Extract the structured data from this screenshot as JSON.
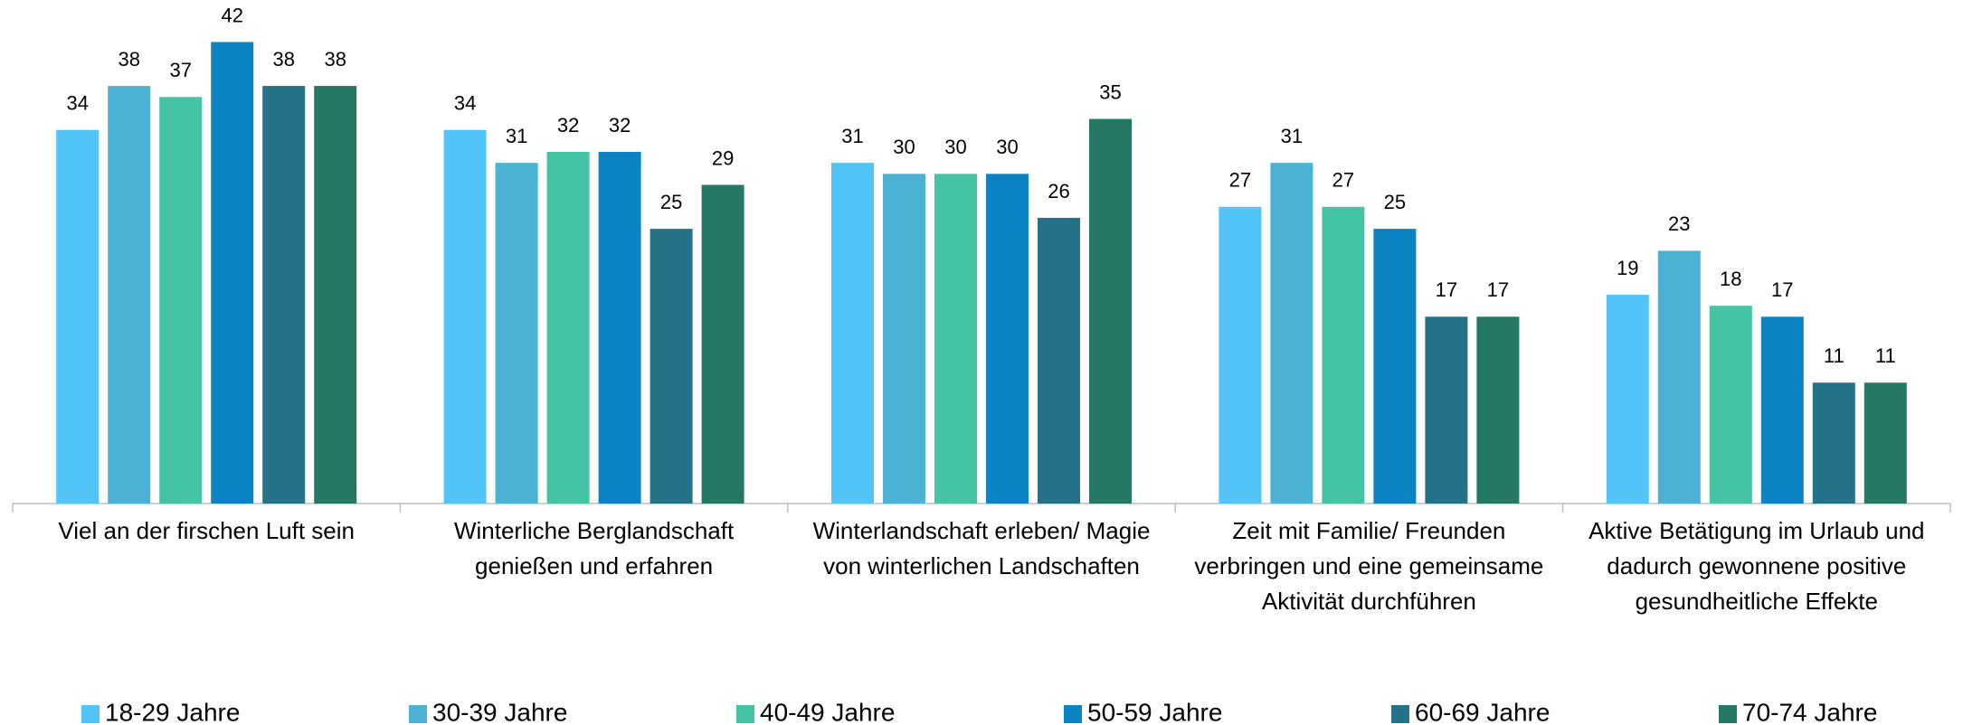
{
  "chart_data": {
    "type": "bar",
    "categories": [
      "Viel an der firschen Luft sein",
      "Winterliche Berglandschaft genießen und erfahren",
      "Winterlandschaft erleben/ Magie von winterlichen Landschaften",
      "Zeit mit Familie/ Freunden verbringen und eine gemeinsame Aktivität durchführen",
      "Aktive Betätigung im Urlaub und dadurch gewonnene positive gesundheitliche Effekte"
    ],
    "series": [
      {
        "name": "18-29 Jahre",
        "color": "#53c4f7",
        "values": [
          34,
          34,
          31,
          27,
          19
        ]
      },
      {
        "name": "30-39 Jahre",
        "color": "#4bb2d3",
        "values": [
          38,
          31,
          30,
          31,
          23
        ]
      },
      {
        "name": "40-49 Jahre",
        "color": "#45c3a5",
        "values": [
          37,
          32,
          30,
          27,
          18
        ]
      },
      {
        "name": "50-59 Jahre",
        "color": "#0c84c4",
        "values": [
          42,
          32,
          30,
          25,
          17
        ]
      },
      {
        "name": "60-69 Jahre",
        "color": "#237288",
        "values": [
          38,
          25,
          26,
          17,
          11
        ]
      },
      {
        "name": "70-74 Jahre",
        "color": "#257863",
        "values": [
          38,
          29,
          35,
          17,
          11
        ]
      }
    ],
    "ylim": [
      0,
      45
    ],
    "legend": "bottom"
  }
}
